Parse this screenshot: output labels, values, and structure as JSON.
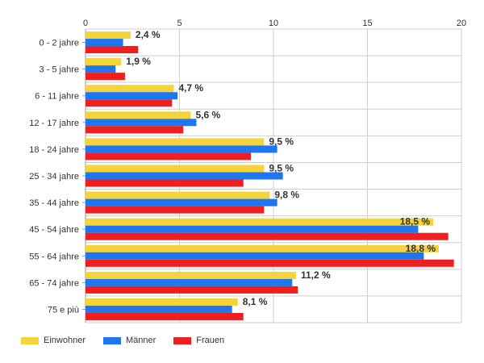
{
  "chart_data": {
    "type": "bar",
    "orientation": "horizontal",
    "categories": [
      "0 - 2 jahre",
      "3 - 5 jahre",
      "6 - 11 jahre",
      "12 - 17 jahre",
      "18 - 24 jahre",
      "25 - 34 jahre",
      "35 - 44 jahre",
      "45 - 54 jahre",
      "55 - 64 jahre",
      "65 - 74 jahre",
      "75 e più"
    ],
    "series": [
      {
        "name": "Einwohner",
        "color": "#f5d33a",
        "values": [
          2.4,
          1.9,
          4.7,
          5.6,
          9.5,
          9.5,
          9.8,
          18.5,
          18.8,
          11.2,
          8.1
        ],
        "labels": [
          "2,4 %",
          "1,9 %",
          "4,7 %",
          "5,6 %",
          "9,5 %",
          "9,5 %",
          "9,8 %",
          "18,5 %",
          "18,8 %",
          "11,2 %",
          "8,1 %"
        ]
      },
      {
        "name": "Männer",
        "color": "#1f77f0",
        "values": [
          2.0,
          1.6,
          4.9,
          5.9,
          10.2,
          10.5,
          10.2,
          17.7,
          18.0,
          11.0,
          7.8
        ]
      },
      {
        "name": "Frauen",
        "color": "#f01f1f",
        "values": [
          2.8,
          2.1,
          4.6,
          5.2,
          8.8,
          8.4,
          9.5,
          19.3,
          19.6,
          11.3,
          8.4
        ]
      }
    ],
    "xlim": [
      0,
      20
    ],
    "xticks": [
      0,
      5,
      10,
      15,
      20
    ],
    "tick_labels_position": "top",
    "legend_position": "bottom-left",
    "grid": true
  }
}
